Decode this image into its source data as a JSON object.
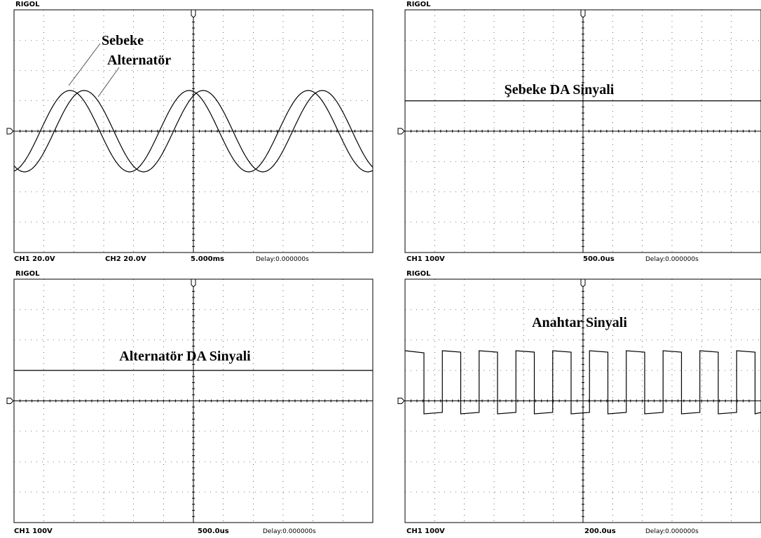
{
  "panels": [
    {
      "brand": "RIGOL",
      "labels": [
        "Sebeke",
        "Alternatör"
      ],
      "footer": [
        "CH1  20.0V",
        "CH2  20.0V",
        "5.000ms",
        "Delay:0.000000s"
      ]
    },
    {
      "brand": "RIGOL",
      "labels": [
        "Şebeke DA Sinyali"
      ],
      "footer": [
        "CH1  100V",
        "500.0us",
        "Delay:0.000000s"
      ]
    },
    {
      "brand": "RIGOL",
      "labels": [
        "Alternatör DA Sinyali"
      ],
      "footer": [
        "CH1  100V",
        "500.0us",
        "Delay:0.000000s"
      ]
    },
    {
      "brand": "RIGOL",
      "labels": [
        "Anahtar Sinyali"
      ],
      "footer": [
        "CH1  100V",
        "200.0us",
        "Delay:0.000000s"
      ]
    }
  ]
}
